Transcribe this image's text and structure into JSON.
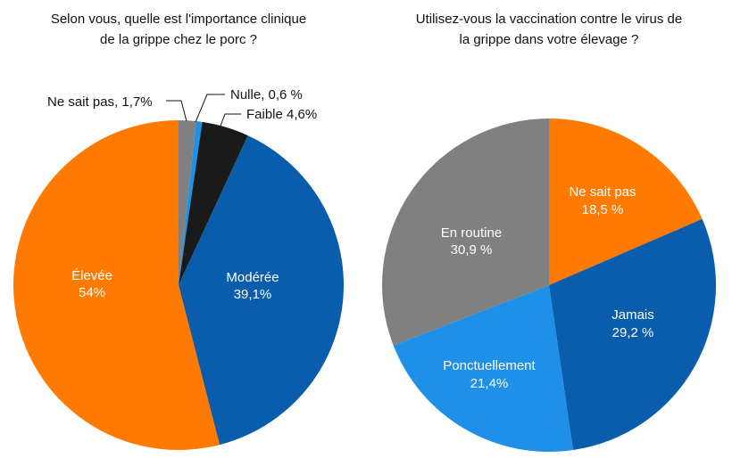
{
  "chart_data": [
    {
      "type": "pie",
      "title": [
        "Selon vous, quelle est l'importance clinique",
        "de la grippe chez le porc ?"
      ],
      "slices": [
        {
          "name": "Ne sait pas",
          "value": 1.7,
          "label": "Ne sait pas, 1,7%",
          "color": "#808080"
        },
        {
          "name": "Nulle",
          "value": 0.6,
          "label": "Nulle, 0,6 %",
          "color": "#1E90E8"
        },
        {
          "name": "Faible",
          "value": 4.6,
          "label": "Faible 4,6%",
          "color": "#1A1A1A"
        },
        {
          "name": "Modérée",
          "value": 39.1,
          "label": [
            "Modérée",
            "39,1%"
          ],
          "color": "#0A5CAD"
        },
        {
          "name": "Élevée",
          "value": 54,
          "label": [
            "Élevée",
            "54%"
          ],
          "color": "#FF7A00"
        }
      ]
    },
    {
      "type": "pie",
      "title": [
        "Utilisez-vous la vaccination contre le virus de",
        "la grippe dans votre élevage ?"
      ],
      "slices": [
        {
          "name": "Ne sait pas",
          "value": 18.5,
          "label": [
            "Ne sait pas",
            "18,5 %"
          ],
          "color": "#FF7A00"
        },
        {
          "name": "Jamais",
          "value": 29.2,
          "label": [
            "Jamais",
            "29,2 %"
          ],
          "color": "#0A5CAD"
        },
        {
          "name": "Ponctuellement",
          "value": 21.4,
          "label": [
            "Ponctuellement",
            "21,4%"
          ],
          "color": "#1E90E8"
        },
        {
          "name": "En routine",
          "value": 30.9,
          "label": [
            "En routine",
            "30,9 %"
          ],
          "color": "#808080"
        }
      ]
    }
  ]
}
